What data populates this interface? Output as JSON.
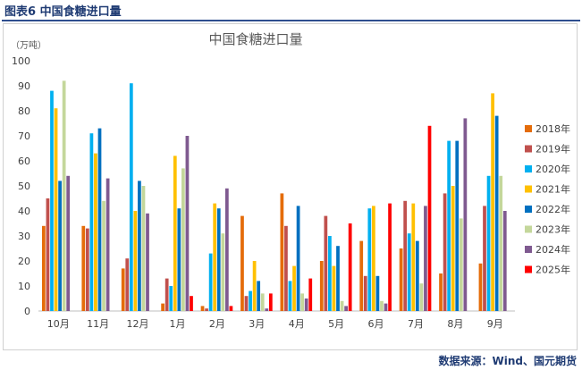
{
  "figure_caption": "图表6 中国食糖进口量",
  "source_note": "数据来源：Wind、国元期货",
  "chart_data": {
    "type": "bar",
    "title": "中国食糖进口量",
    "unit_label": "（万吨）",
    "categories": [
      "10月",
      "11月",
      "12月",
      "1月",
      "2月",
      "3月",
      "4月",
      "5月",
      "6月",
      "7月",
      "8月",
      "9月"
    ],
    "ylim": [
      0,
      100
    ],
    "yticks": [
      0,
      10,
      20,
      30,
      40,
      50,
      60,
      70,
      80,
      90,
      100
    ],
    "grid": false,
    "legend_position": "right",
    "series": [
      {
        "name": "2018年",
        "color": "#e46c0a",
        "values": [
          34,
          34,
          17,
          3,
          2,
          38,
          47,
          20,
          28,
          25,
          15,
          19
        ]
      },
      {
        "name": "2019年",
        "color": "#c0504d",
        "values": [
          45,
          33,
          21,
          13,
          1,
          6,
          34,
          38,
          14,
          44,
          47,
          42
        ]
      },
      {
        "name": "2020年",
        "color": "#00b0f0",
        "values": [
          88,
          71,
          91,
          10,
          23,
          8,
          12,
          30,
          41,
          31,
          68,
          54
        ]
      },
      {
        "name": "2021年",
        "color": "#ffc000",
        "values": [
          81,
          63,
          40,
          62,
          43,
          20,
          18,
          18,
          42,
          43,
          50,
          87
        ]
      },
      {
        "name": "2022年",
        "color": "#0070c0",
        "values": [
          52,
          73,
          52,
          41,
          41,
          12,
          42,
          26,
          14,
          28,
          68,
          78
        ]
      },
      {
        "name": "2023年",
        "color": "#c4d79b",
        "values": [
          92,
          44,
          50,
          57,
          31,
          7,
          7,
          4,
          4,
          11,
          37,
          54
        ]
      },
      {
        "name": "2024年",
        "color": "#7f5a90",
        "values": [
          54,
          53,
          39,
          70,
          49,
          1,
          5,
          2,
          3,
          42,
          77,
          40
        ]
      },
      {
        "name": "2025年",
        "color": "#ff0000",
        "values": [
          null,
          null,
          null,
          6,
          2,
          7,
          13,
          35,
          43,
          74,
          null,
          null
        ]
      }
    ]
  }
}
